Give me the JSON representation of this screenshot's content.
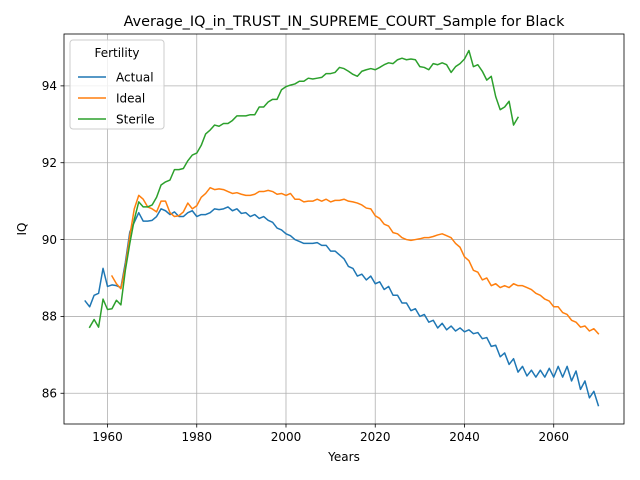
{
  "chart_data": {
    "type": "line",
    "title": "Average_IQ_in_TRUST_IN_SUPREME_COURT_Sample for Black",
    "xlabel": "Years",
    "ylabel": "IQ",
    "xlim": [
      1950.25,
      2075.75
    ],
    "ylim": [
      85.2,
      95.35
    ],
    "xticks": [
      1960,
      1980,
      2000,
      2020,
      2040,
      2060
    ],
    "yticks": [
      86,
      88,
      90,
      92,
      94
    ],
    "grid": true,
    "legend": {
      "title": "Fertility",
      "placement": "upper-left"
    },
    "series": [
      {
        "name": "Actual",
        "color": "#1f77b4",
        "x_start": 1955,
        "x_step": 1,
        "values": [
          88.4,
          88.25,
          88.55,
          88.6,
          89.25,
          88.78,
          88.82,
          88.8,
          88.75,
          89.4,
          90.2,
          90.45,
          90.7,
          90.48,
          90.48,
          90.5,
          90.6,
          90.8,
          90.75,
          90.65,
          90.72,
          90.6,
          90.6,
          90.7,
          90.75,
          90.6,
          90.65,
          90.65,
          90.7,
          90.8,
          90.78,
          90.8,
          90.85,
          90.75,
          90.8,
          90.68,
          90.7,
          90.6,
          90.65,
          90.55,
          90.6,
          90.5,
          90.45,
          90.3,
          90.25,
          90.15,
          90.1,
          90.0,
          89.95,
          89.9,
          89.9,
          89.9,
          89.92,
          89.85,
          89.85,
          89.7,
          89.7,
          89.6,
          89.5,
          89.3,
          89.25,
          89.05,
          89.1,
          88.95,
          89.05,
          88.85,
          88.9,
          88.7,
          88.78,
          88.55,
          88.55,
          88.35,
          88.35,
          88.15,
          88.2,
          88.0,
          88.05,
          87.85,
          87.9,
          87.7,
          87.82,
          87.65,
          87.75,
          87.62,
          87.7,
          87.6,
          87.65,
          87.55,
          87.58,
          87.42,
          87.45,
          87.22,
          87.25,
          86.95,
          87.05,
          86.75,
          86.9,
          86.55,
          86.7,
          86.45,
          86.6,
          86.42,
          86.6,
          86.42,
          86.65,
          86.42,
          86.7,
          86.42,
          86.7,
          86.32,
          86.58,
          86.1,
          86.32,
          85.88,
          86.05,
          85.68
        ]
      },
      {
        "name": "Ideal",
        "color": "#ff7f0e",
        "x_start": 1961,
        "x_step": 1,
        "values": [
          89.05,
          88.85,
          88.72,
          89.3,
          90.1,
          90.8,
          91.15,
          91.05,
          90.85,
          90.8,
          90.72,
          91.0,
          91.0,
          90.7,
          90.6,
          90.62,
          90.72,
          90.95,
          90.8,
          90.88,
          91.1,
          91.2,
          91.35,
          91.3,
          91.32,
          91.3,
          91.25,
          91.2,
          91.22,
          91.18,
          91.15,
          91.15,
          91.18,
          91.25,
          91.25,
          91.28,
          91.25,
          91.18,
          91.2,
          91.15,
          91.2,
          91.05,
          91.05,
          90.98,
          91.0,
          91.0,
          91.05,
          91.0,
          91.05,
          90.98,
          91.02,
          91.02,
          91.05,
          91.0,
          90.98,
          90.95,
          90.9,
          90.82,
          90.8,
          90.62,
          90.55,
          90.4,
          90.35,
          90.18,
          90.15,
          90.05,
          90.0,
          89.98,
          90.0,
          90.02,
          90.05,
          90.05,
          90.08,
          90.12,
          90.15,
          90.1,
          90.05,
          89.9,
          89.8,
          89.55,
          89.45,
          89.2,
          89.15,
          88.95,
          89.0,
          88.8,
          88.85,
          88.75,
          88.8,
          88.75,
          88.85,
          88.8,
          88.8,
          88.75,
          88.7,
          88.6,
          88.55,
          88.45,
          88.4,
          88.25,
          88.25,
          88.1,
          88.05,
          87.9,
          87.85,
          87.72,
          87.75,
          87.62,
          87.68,
          87.55
        ]
      },
      {
        "name": "Sterile",
        "color": "#2ca02c",
        "x_start": 1956,
        "x_step": 1,
        "values": [
          87.72,
          87.92,
          87.72,
          88.45,
          88.18,
          88.2,
          88.42,
          88.3,
          89.2,
          89.9,
          90.52,
          90.98,
          90.85,
          90.85,
          90.9,
          91.1,
          91.42,
          91.5,
          91.55,
          91.82,
          91.82,
          91.85,
          92.05,
          92.2,
          92.25,
          92.45,
          92.75,
          92.85,
          92.98,
          92.95,
          93.02,
          93.02,
          93.1,
          93.22,
          93.22,
          93.22,
          93.25,
          93.25,
          93.45,
          93.45,
          93.58,
          93.65,
          93.65,
          93.9,
          93.98,
          94.02,
          94.05,
          94.12,
          94.12,
          94.2,
          94.18,
          94.2,
          94.22,
          94.32,
          94.32,
          94.35,
          94.48,
          94.45,
          94.38,
          94.3,
          94.25,
          94.38,
          94.42,
          94.45,
          94.42,
          94.48,
          94.55,
          94.6,
          94.58,
          94.68,
          94.72,
          94.68,
          94.7,
          94.68,
          94.5,
          94.48,
          94.42,
          94.58,
          94.55,
          94.6,
          94.55,
          94.35,
          94.5,
          94.58,
          94.7,
          94.92,
          94.5,
          94.55,
          94.38,
          94.15,
          94.25,
          93.72,
          93.38,
          93.45,
          93.6,
          92.98,
          93.18
        ]
      }
    ]
  }
}
